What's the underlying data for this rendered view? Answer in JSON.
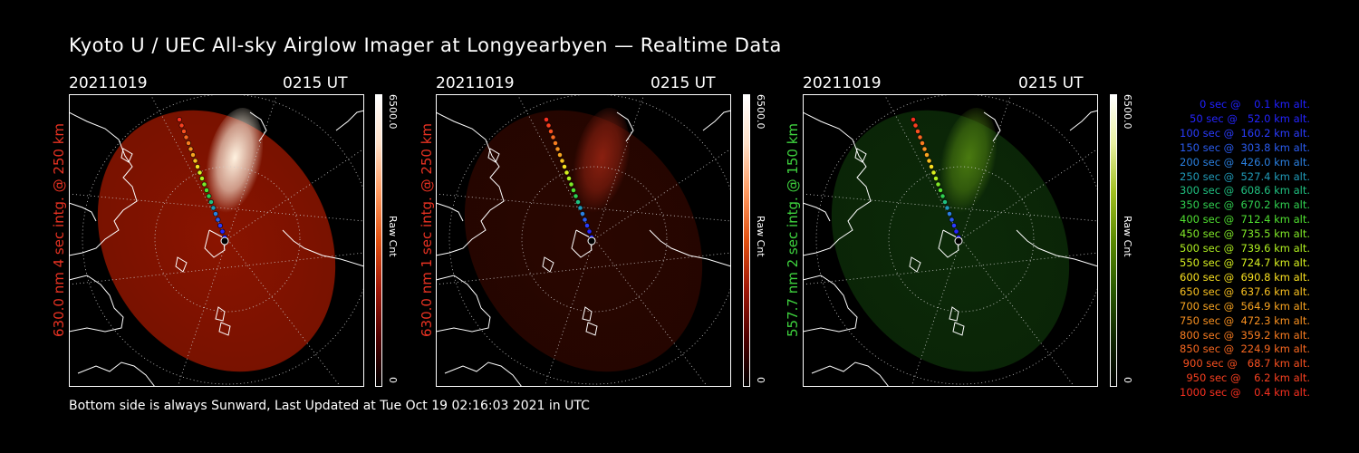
{
  "title": "Kyoto U / UEC All-sky Airglow Imager at Longyearbyen — Realtime Data",
  "footer": "Bottom side is always Sunward, Last Updated at Tue Oct 19 02:16:03 2021 in UTC",
  "colors": {
    "red": "#e83222",
    "green": "#3ed23e",
    "background": "#000000"
  },
  "panels": [
    {
      "date": "20211019",
      "time": "0215 UT",
      "side_label": "630.0 nm 4 sec intg. @ 250 km",
      "label_color": "#e83222",
      "colorbar_max": "6500.0",
      "colorbar_unit": "Raw Cnt",
      "colorbar_min": "0",
      "colormap": "red",
      "brightness": "high"
    },
    {
      "date": "20211019",
      "time": "0215 UT",
      "side_label": "630.0 nm 1 sec intg. @ 250 km",
      "label_color": "#e83222",
      "colorbar_max": "6500.0",
      "colorbar_unit": "Raw Cnt",
      "colorbar_min": "0",
      "colormap": "red",
      "brightness": "low"
    },
    {
      "date": "20211019",
      "time": "0215 UT",
      "side_label": "557.7 nm 2 sec intg. @ 150 km",
      "label_color": "#3ed23e",
      "colorbar_max": "6500.0",
      "colorbar_unit": "Raw Cnt",
      "colorbar_min": "0",
      "colormap": "green",
      "brightness": "low"
    }
  ],
  "legend": [
    {
      "text": "   0 sec @    0.1 km alt.",
      "color": "#2020ff"
    },
    {
      "text": "  50 sec @   52.0 km alt.",
      "color": "#2424ff"
    },
    {
      "text": " 100 sec @  160.2 km alt.",
      "color": "#2a3cff"
    },
    {
      "text": " 150 sec @  303.8 km alt.",
      "color": "#2a5cf0"
    },
    {
      "text": " 200 sec @  426.0 km alt.",
      "color": "#2a80e0"
    },
    {
      "text": " 250 sec @  527.4 km alt.",
      "color": "#209ab8"
    },
    {
      "text": " 300 sec @  608.6 km alt.",
      "color": "#20c080"
    },
    {
      "text": " 350 sec @  670.2 km alt.",
      "color": "#30d050"
    },
    {
      "text": " 400 sec @  712.4 km alt.",
      "color": "#50e030"
    },
    {
      "text": " 450 sec @  735.5 km alt.",
      "color": "#80e828"
    },
    {
      "text": " 500 sec @  739.6 km alt.",
      "color": "#b0f020"
    },
    {
      "text": " 550 sec @  724.7 km alt.",
      "color": "#d8f020"
    },
    {
      "text": " 600 sec @  690.8 km alt.",
      "color": "#f8e020"
    },
    {
      "text": " 650 sec @  637.6 km alt.",
      "color": "#f8c020"
    },
    {
      "text": " 700 sec @  564.9 km alt.",
      "color": "#f8a420"
    },
    {
      "text": " 750 sec @  472.3 km alt.",
      "color": "#f89020"
    },
    {
      "text": " 800 sec @  359.2 km alt.",
      "color": "#f87c20"
    },
    {
      "text": " 850 sec @  224.9 km alt.",
      "color": "#f86820"
    },
    {
      "text": " 900 sec @   68.7 km alt.",
      "color": "#f85020"
    },
    {
      "text": " 950 sec @    6.2 km alt.",
      "color": "#f84020"
    },
    {
      "text": "1000 sec @    0.4 km alt.",
      "color": "#f83020"
    }
  ]
}
